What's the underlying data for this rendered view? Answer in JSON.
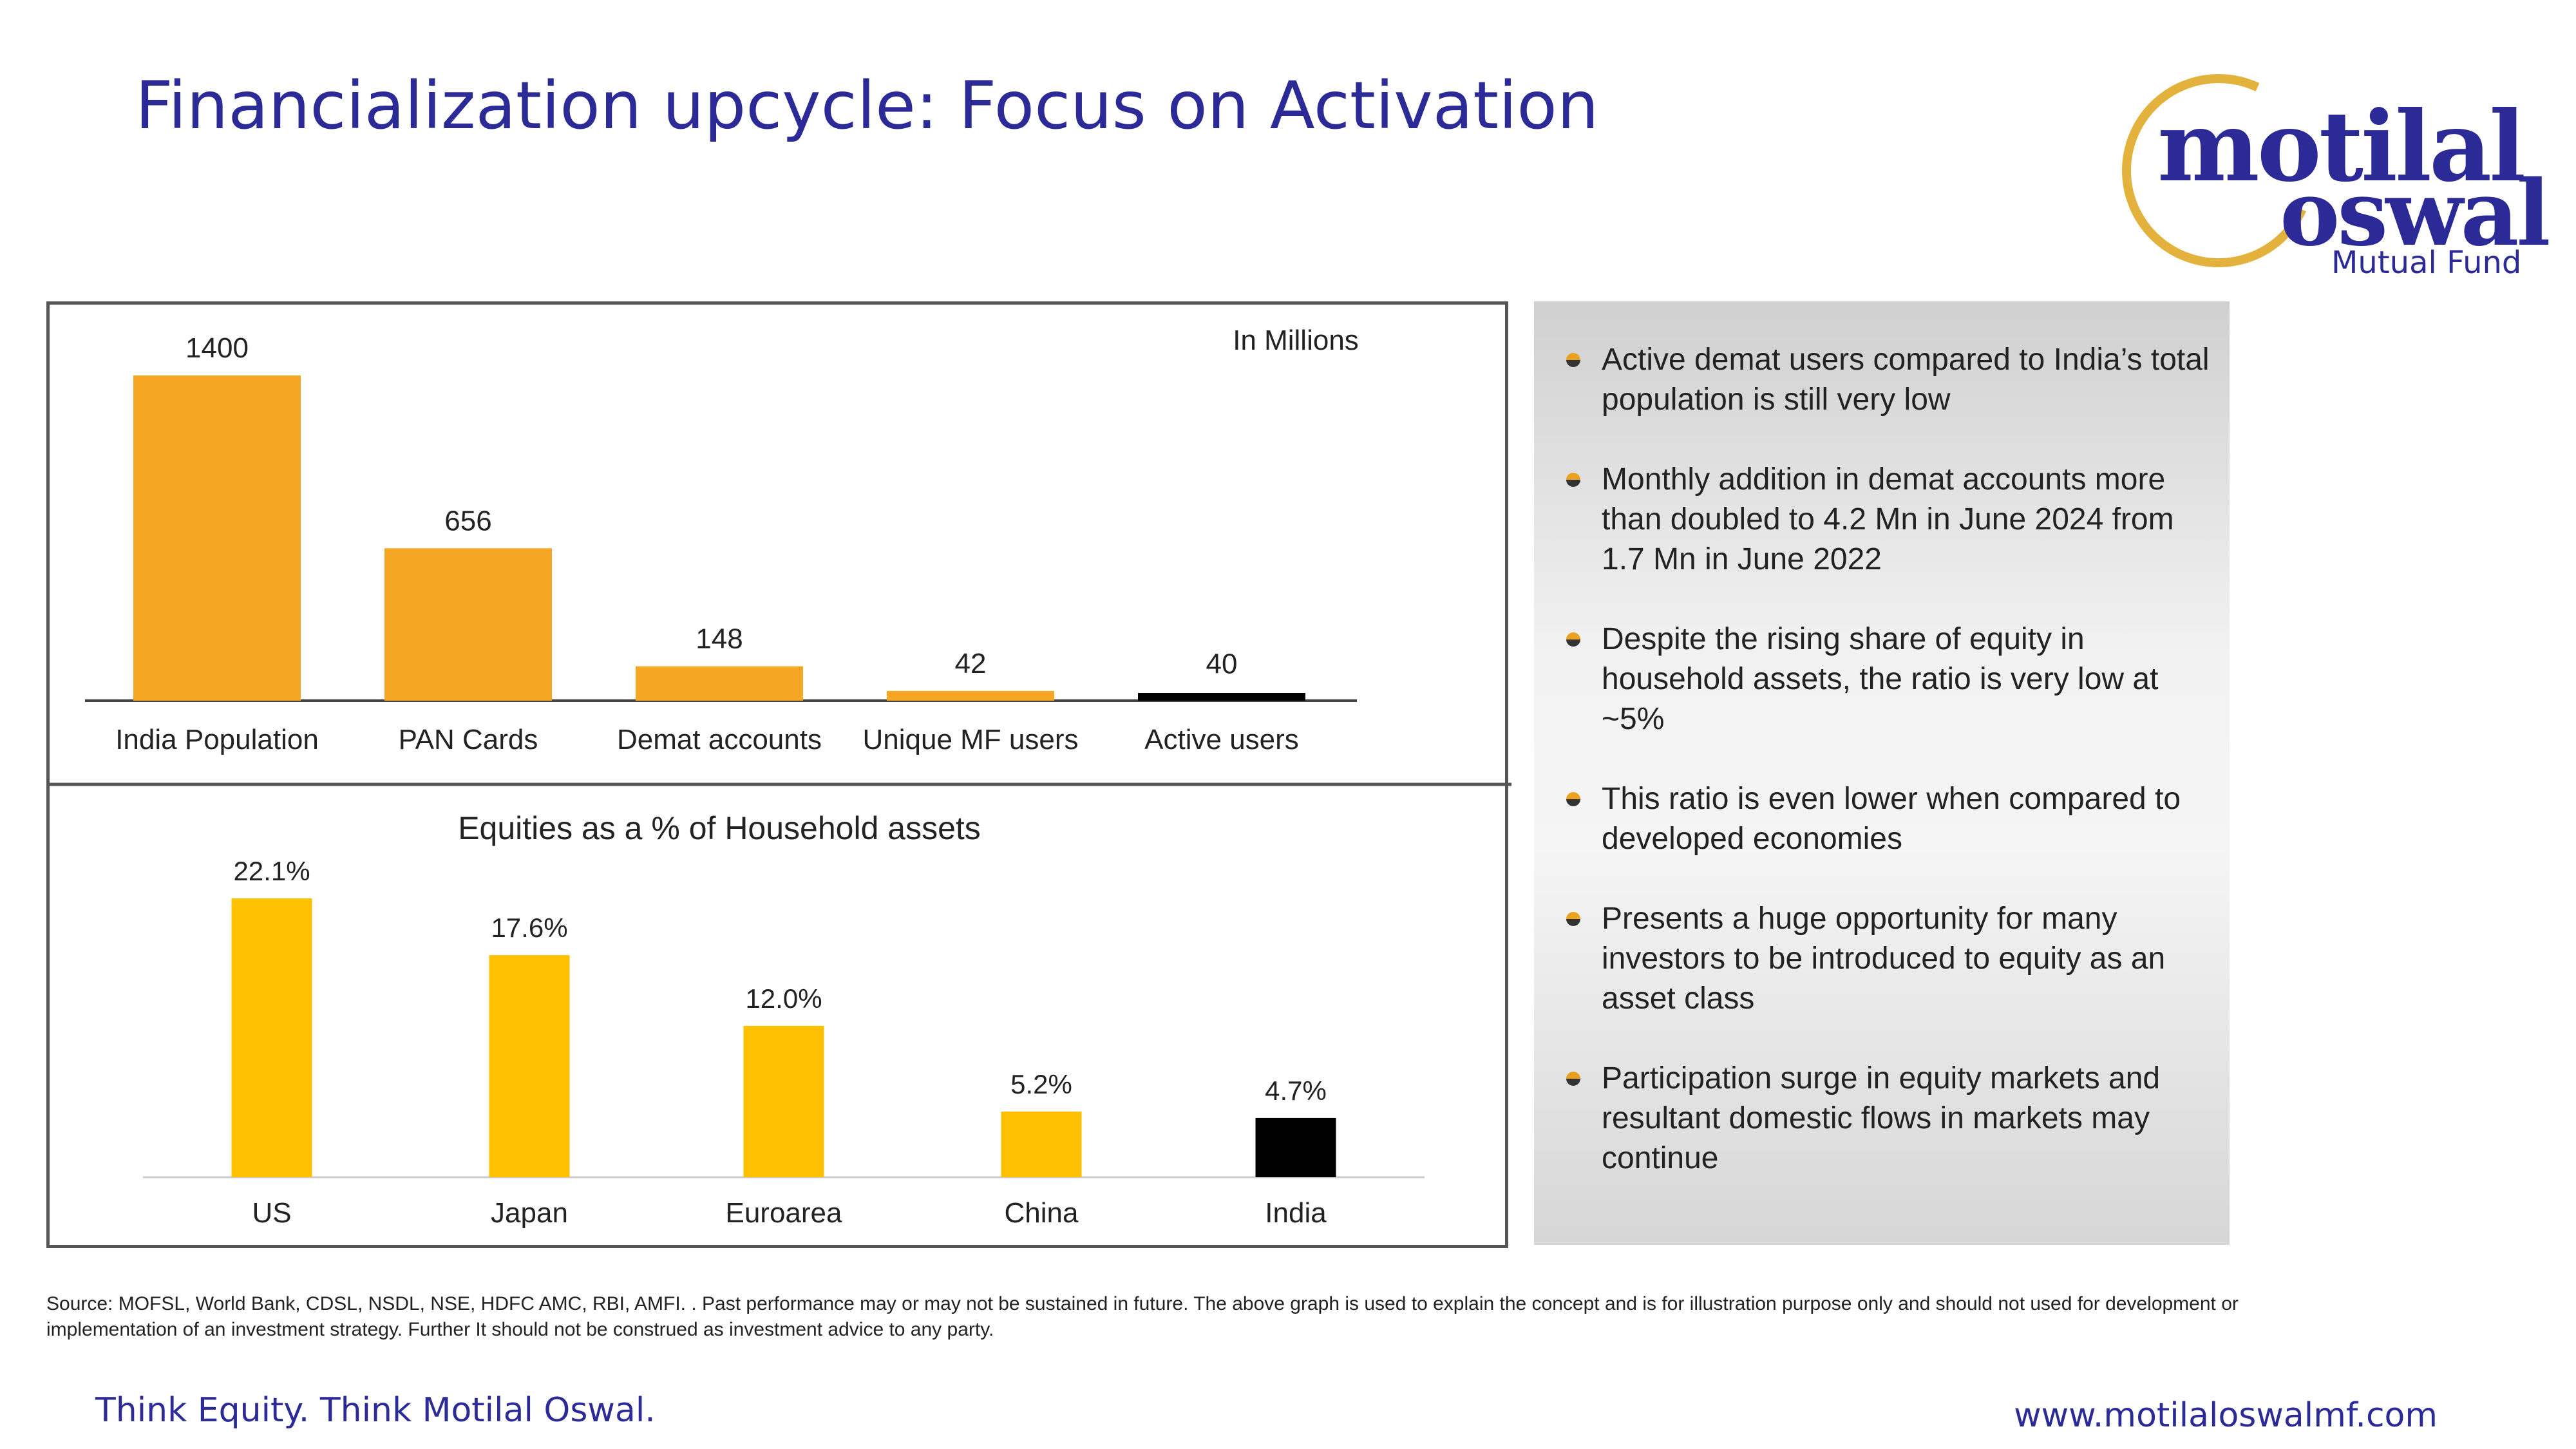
{
  "header": {
    "title": "Financialization upcycle: Focus on Activation"
  },
  "logo": {
    "line1": "motilal",
    "line2": "oswal",
    "line3": "Mutual Fund"
  },
  "colors": {
    "bar": "#F5A623",
    "bar2": "#FFC000",
    "india": "#000000",
    "title": "#2B2A96"
  },
  "chart_data": [
    {
      "type": "bar",
      "title": "",
      "annotation": "In Millions",
      "categories": [
        "India Population",
        "PAN Cards",
        "Demat accounts",
        "Unique MF users",
        "Active users"
      ],
      "values": [
        1400,
        656,
        148,
        42,
        40
      ],
      "value_labels": [
        "1400",
        "656",
        "148",
        "42",
        "40"
      ],
      "highlight_index": 4,
      "ylim": [
        0,
        1400
      ]
    },
    {
      "type": "bar",
      "title": "Equities as a % of Household assets",
      "categories": [
        "US",
        "Japan",
        "Euroarea",
        "China",
        "India"
      ],
      "values": [
        22.1,
        17.6,
        12.0,
        5.2,
        4.7
      ],
      "value_labels": [
        "22.1%",
        "17.6%",
        "12.0%",
        "5.2%",
        "4.7%"
      ],
      "highlight_index": 4,
      "ylim": [
        0,
        22.1
      ]
    }
  ],
  "bullets": [
    "Active demat users compared to India’s total population is still very low",
    "Monthly addition in demat accounts more than doubled to 4.2 Mn in June 2024 from 1.7 Mn in June 2022",
    "Despite the rising share of equity in household assets, the ratio is very low at ~5%",
    "This ratio is even lower when compared to developed economies",
    "Presents a huge opportunity for many investors to be introduced to equity as an asset class",
    "Participation surge in equity markets and resultant domestic flows in markets may continue"
  ],
  "source": "Source: MOFSL, World Bank, CDSL, NSDL, NSE, HDFC AMC, RBI, AMFI. . Past performance may or may not be sustained in future. The above graph is used to explain the concept and is for illustration purpose only and should not used for development or implementation of an investment strategy. Further It should not be construed as investment advice to any party.",
  "footer": {
    "tagline": "Think Equity. Think Motilal Oswal.",
    "website": "www.motilaloswalmf.com"
  }
}
